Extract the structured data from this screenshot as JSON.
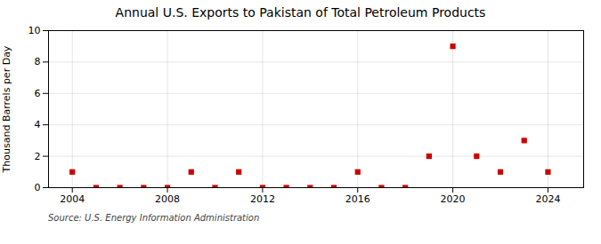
{
  "chart_data": {
    "type": "scatter",
    "title": "Annual U.S. Exports to Pakistan of Total Petroleum Products",
    "ylabel": "Thousand Barrels per Day",
    "source": "Source: U.S. Energy Information Administration",
    "x": [
      2004,
      2005,
      2006,
      2007,
      2008,
      2009,
      2010,
      2011,
      2012,
      2013,
      2014,
      2015,
      2016,
      2017,
      2018,
      2019,
      2020,
      2021,
      2022,
      2023,
      2024
    ],
    "values": [
      1,
      0,
      0,
      0,
      0,
      1,
      0,
      1,
      0,
      0,
      0,
      0,
      1,
      0,
      0,
      2,
      9,
      2,
      1,
      3,
      1
    ],
    "color": "#cc0000",
    "marker": "square",
    "xlim": [
      2003,
      2025.5
    ],
    "xticks": [
      2004,
      2008,
      2012,
      2016,
      2020,
      2024
    ],
    "ylim": [
      0,
      10
    ],
    "yticks": [
      0,
      2,
      4,
      6,
      8,
      10
    ],
    "grid": true
  }
}
